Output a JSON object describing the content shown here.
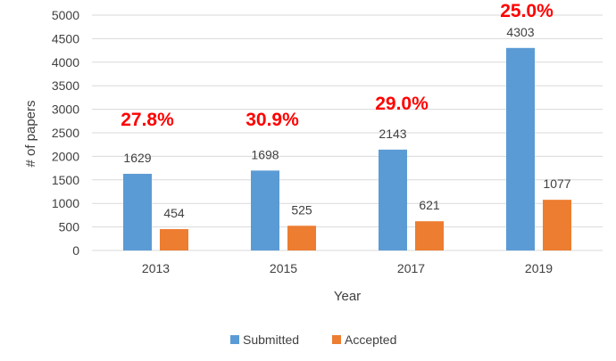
{
  "chart_data": {
    "type": "bar",
    "xlabel": "Year",
    "ylabel": "# of papers",
    "ylim": [
      0,
      5000
    ],
    "y_ticks": [
      0,
      500,
      1000,
      1500,
      2000,
      2500,
      3000,
      3500,
      4000,
      4500,
      5000
    ],
    "categories": [
      "2013",
      "2015",
      "2017",
      "2019"
    ],
    "series": [
      {
        "name": "Submitted",
        "values": [
          1629,
          1698,
          2143,
          4303
        ],
        "color": "#5B9BD5"
      },
      {
        "name": "Accepted",
        "values": [
          454,
          525,
          621,
          1077
        ],
        "color": "#ED7D31"
      }
    ],
    "annotations": [
      "27.8%",
      "30.9%",
      "29.0%",
      "25.0%"
    ],
    "annotation_color": "#FF0000",
    "grid": true,
    "gridline_color": "#D9D9D9",
    "legend_position": "bottom"
  }
}
